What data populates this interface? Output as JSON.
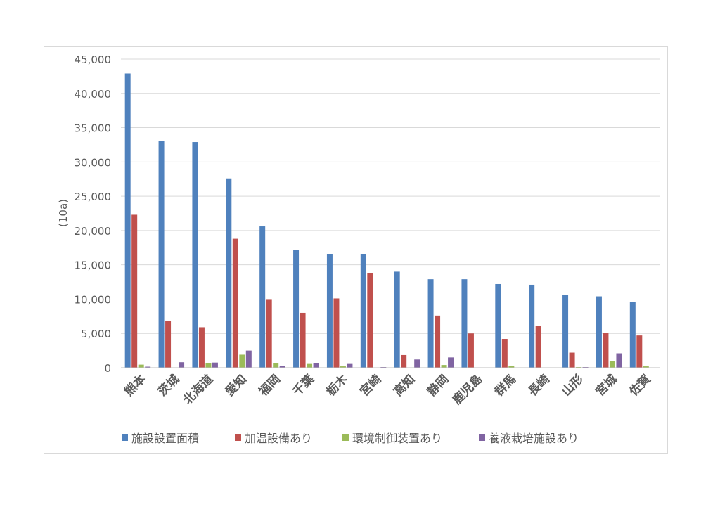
{
  "chart_data": {
    "type": "bar",
    "title": "",
    "xlabel": "",
    "ylabel": "(10a)",
    "ylim": [
      0,
      45000
    ],
    "yticks": [
      0,
      5000,
      10000,
      15000,
      20000,
      25000,
      30000,
      35000,
      40000,
      45000
    ],
    "ytick_labels": [
      "0",
      "5,000",
      "10,000",
      "15,000",
      "20,000",
      "25,000",
      "30,000",
      "35,000",
      "40,000",
      "45,000"
    ],
    "grid": true,
    "legend_position": "bottom",
    "categories": [
      "熊本",
      "茨城",
      "北海道",
      "愛知",
      "福岡",
      "千葉",
      "栃木",
      "宮崎",
      "高知",
      "静岡",
      "鹿児島",
      "群馬",
      "長崎",
      "山形",
      "宮城",
      "佐賀"
    ],
    "series": [
      {
        "name": "施設設置面積",
        "color": "#4f81bd",
        "values": [
          42900,
          33100,
          32900,
          27600,
          20600,
          17200,
          16600,
          16600,
          14000,
          12900,
          12900,
          12200,
          12100,
          10600,
          10400,
          9600
        ]
      },
      {
        "name": "加温設備あり",
        "color": "#c0504d",
        "values": [
          22300,
          6800,
          5900,
          18800,
          9900,
          8000,
          10100,
          13800,
          1850,
          7600,
          5000,
          4200,
          6100,
          2200,
          5100,
          4700
        ]
      },
      {
        "name": "環境制御装置あり",
        "color": "#9bbb59",
        "values": [
          450,
          50,
          700,
          1900,
          650,
          550,
          200,
          50,
          0,
          400,
          0,
          250,
          0,
          100,
          1000,
          200
        ]
      },
      {
        "name": "養液栽培施設あり",
        "color": "#8064a2",
        "values": [
          150,
          800,
          750,
          2500,
          300,
          700,
          550,
          100,
          1200,
          1500,
          50,
          50,
          0,
          100,
          2100,
          0
        ]
      }
    ]
  }
}
